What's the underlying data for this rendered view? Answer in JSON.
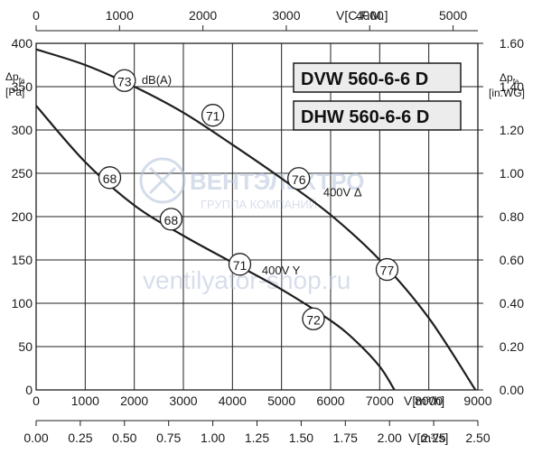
{
  "chart_data": {
    "type": "line",
    "models": [
      "DVW 560-6-6 D",
      "DHW 560-6-6 D"
    ],
    "x_axis_bottom": {
      "label": "V[m³/h]",
      "range": [
        0,
        9000
      ],
      "ticks": [
        "0",
        "1000",
        "2000",
        "3000",
        "4000",
        "5000",
        "6000",
        "7000",
        "8000",
        "9000"
      ]
    },
    "x_axis_bottom2": {
      "label": "V[m³/s]",
      "range": [
        0,
        2.5
      ],
      "ticks": [
        "0.00",
        "0.25",
        "0.50",
        "0.75",
        "1.00",
        "1.25",
        "1.50",
        "1.75",
        "2.00",
        "2.25",
        "2.50"
      ]
    },
    "x_axis_top": {
      "label": "V[C.F.M.]",
      "range": [
        0,
        5297
      ],
      "ticks": [
        "0",
        "1000",
        "2000",
        "3000",
        "4000",
        "5000"
      ]
    },
    "y_axis_left": {
      "label_main": "Δp",
      "label_sub": "fa",
      "unit": "[Pa]",
      "range": [
        0,
        400
      ],
      "ticks": [
        "0",
        "50",
        "100",
        "150",
        "200",
        "250",
        "300",
        "350",
        "400"
      ]
    },
    "y_axis_right": {
      "label_main": "Δp",
      "label_sub": "fa",
      "unit": "[in.WG]",
      "range": [
        0,
        1.6
      ],
      "ticks": [
        "0.00",
        "0.20",
        "0.40",
        "0.60",
        "0.80",
        "1.00",
        "1.20",
        "1.40",
        "1.60"
      ]
    },
    "grid": true,
    "series": [
      {
        "name": "400V Δ",
        "x": [
          0,
          1000,
          2000,
          3000,
          4000,
          5000,
          6000,
          7000,
          8000,
          8950
        ],
        "y": [
          393,
          375,
          350,
          320,
          283,
          244,
          202,
          150,
          83,
          0
        ]
      },
      {
        "name": "400V Y",
        "x": [
          0,
          1000,
          2000,
          3000,
          4000,
          5000,
          6000,
          6500,
          7000,
          7300
        ],
        "y": [
          328,
          263,
          213,
          178,
          147,
          116,
          80,
          57,
          27,
          0
        ]
      }
    ],
    "noise_markers": [
      {
        "label": "73",
        "x": 1800,
        "y": 357
      },
      {
        "label": "71",
        "x": 3600,
        "y": 317
      },
      {
        "label": "76",
        "x": 5350,
        "y": 244
      },
      {
        "label": "77",
        "x": 7150,
        "y": 139
      },
      {
        "label": "68",
        "x": 1500,
        "y": 245
      },
      {
        "label": "68",
        "x": 2750,
        "y": 197
      },
      {
        "label": "71",
        "x": 4150,
        "y": 145
      },
      {
        "label": "72",
        "x": 5650,
        "y": 82
      }
    ],
    "annotations": [
      {
        "text": "dB(A)",
        "x": 2150,
        "y": 358
      },
      {
        "text": "400V Δ",
        "x": 5850,
        "y": 228
      },
      {
        "text": "400V Y",
        "x": 4600,
        "y": 138
      }
    ]
  },
  "watermark": {
    "brand": "ВЕНТЭЛЕКТРО",
    "tagline": "ГРУППА КОМПАНИЙ",
    "site": "ventilyator-shop.ru"
  },
  "colors": {
    "line": "#1f1f1f",
    "box_fill": "#ececec",
    "watermark": "#b8c4dc"
  }
}
